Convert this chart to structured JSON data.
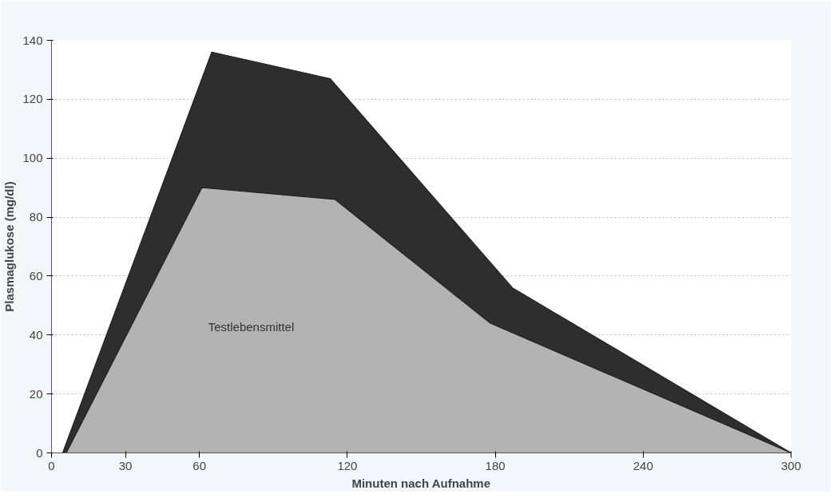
{
  "chart_data": {
    "type": "area",
    "xlabel": "Minuten nach Aufnahme",
    "ylabel": "Plasmaglukose (mg/dl)",
    "series": [
      {
        "color": "#2e2e2e",
        "x": [
          4.5,
          65,
          113,
          187,
          300
        ],
        "values": [
          0,
          136,
          127,
          56,
          0
        ]
      },
      {
        "name": "Testlebensmittel",
        "color": "#b3b3b3",
        "x": [
          6,
          61,
          115,
          178,
          300
        ],
        "values": [
          0,
          90,
          86,
          44,
          0
        ]
      }
    ],
    "xlim": [
      0,
      300
    ],
    "xticks": [
      0,
      30,
      60,
      120,
      180,
      240,
      300
    ],
    "ylim": [
      0,
      140
    ],
    "yticks": [
      0,
      20,
      40,
      60,
      80,
      100,
      120,
      140
    ],
    "grid": "y"
  }
}
